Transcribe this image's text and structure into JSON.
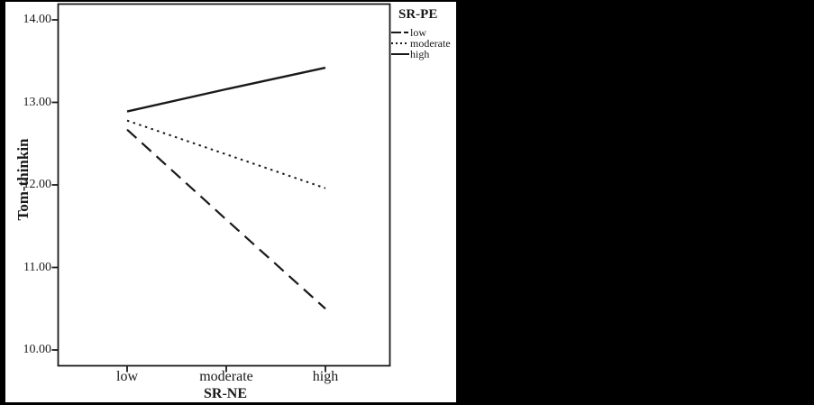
{
  "colors": {
    "ink": "#1a1a1a",
    "panel_background": "#ffffff",
    "surround_background": "#000000"
  },
  "chart_data": {
    "type": "line",
    "title": "",
    "xlabel": "SR-NE",
    "ylabel": "Tom-thinkin",
    "categories": [
      "low",
      "moderate",
      "high"
    ],
    "yticks": [
      "14.00",
      "13.00",
      "12.00",
      "11.00",
      "10.00"
    ],
    "ylim": [
      9.8,
      14.25
    ],
    "grid": false,
    "legend": {
      "title": "SR-PE",
      "position": "top-right-outside"
    },
    "series": [
      {
        "name": "low",
        "line_style": "dashed",
        "values": [
          12.67,
          11.58,
          10.5
        ]
      },
      {
        "name": "moderate",
        "line_style": "dotted",
        "values": [
          12.78,
          12.37,
          11.96
        ]
      },
      {
        "name": "high",
        "line_style": "solid",
        "values": [
          12.89,
          13.16,
          13.42
        ]
      }
    ]
  }
}
